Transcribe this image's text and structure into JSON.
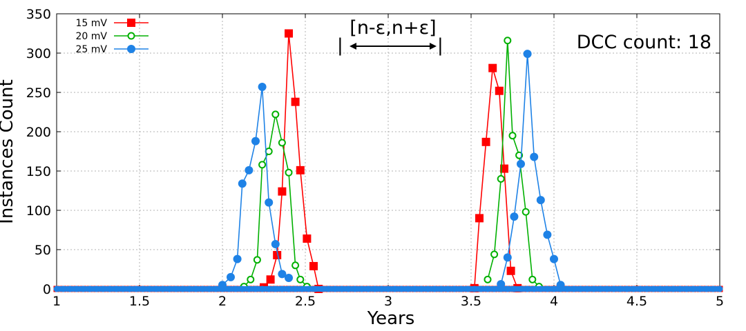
{
  "chart_data": {
    "type": "line",
    "title": "",
    "xlabel": "Years",
    "ylabel": "Instances Count",
    "xlim": [
      1,
      5
    ],
    "ylim": [
      0,
      350
    ],
    "xticks": [
      "1",
      "1.5",
      "2",
      "2.5",
      "3",
      "3.5",
      "4",
      "4.5",
      "5"
    ],
    "yticks": [
      "0",
      "50",
      "100",
      "150",
      "200",
      "250",
      "300",
      "350"
    ],
    "grid": true,
    "legend_position": "top-left",
    "annotations": {
      "interval_label": "[n-ε,n+ε]",
      "dcc_count": "DCC count: 18"
    },
    "series": [
      {
        "name": "15 mV",
        "color": "#ff0000",
        "marker": "filled-square",
        "points": [
          [
            2.25,
            2
          ],
          [
            2.29,
            12
          ],
          [
            2.33,
            43
          ],
          [
            2.36,
            124
          ],
          [
            2.4,
            325
          ],
          [
            2.44,
            238
          ],
          [
            2.47,
            151
          ],
          [
            2.51,
            64
          ],
          [
            2.55,
            29
          ],
          [
            2.58,
            0
          ],
          [
            3.52,
            1
          ],
          [
            3.55,
            90
          ],
          [
            3.59,
            187
          ],
          [
            3.63,
            281
          ],
          [
            3.67,
            252
          ],
          [
            3.7,
            153
          ],
          [
            3.74,
            23
          ],
          [
            3.78,
            1
          ]
        ]
      },
      {
        "name": "20 mV",
        "color": "#00b000",
        "marker": "open-circle",
        "points": [
          [
            2.13,
            3
          ],
          [
            2.17,
            12
          ],
          [
            2.21,
            37
          ],
          [
            2.24,
            158
          ],
          [
            2.28,
            175
          ],
          [
            2.32,
            222
          ],
          [
            2.36,
            186
          ],
          [
            2.4,
            148
          ],
          [
            2.44,
            30
          ],
          [
            2.47,
            12
          ],
          [
            2.51,
            3
          ],
          [
            3.6,
            12
          ],
          [
            3.64,
            44
          ],
          [
            3.68,
            140
          ],
          [
            3.72,
            316
          ],
          [
            3.75,
            195
          ],
          [
            3.79,
            170
          ],
          [
            3.83,
            98
          ],
          [
            3.87,
            12
          ],
          [
            3.91,
            3
          ]
        ]
      },
      {
        "name": "25 mV",
        "color": "#1e82e6",
        "marker": "filled-circle",
        "points": [
          [
            2.0,
            5
          ],
          [
            2.05,
            15
          ],
          [
            2.09,
            38
          ],
          [
            2.12,
            134
          ],
          [
            2.16,
            151
          ],
          [
            2.2,
            188
          ],
          [
            2.24,
            257
          ],
          [
            2.28,
            110
          ],
          [
            2.32,
            57
          ],
          [
            2.36,
            19
          ],
          [
            2.4,
            14
          ],
          [
            3.68,
            6
          ],
          [
            3.72,
            40
          ],
          [
            3.76,
            92
          ],
          [
            3.8,
            159
          ],
          [
            3.84,
            299
          ],
          [
            3.88,
            168
          ],
          [
            3.92,
            113
          ],
          [
            3.96,
            69
          ],
          [
            4.0,
            38
          ],
          [
            4.04,
            5
          ]
        ]
      }
    ]
  }
}
